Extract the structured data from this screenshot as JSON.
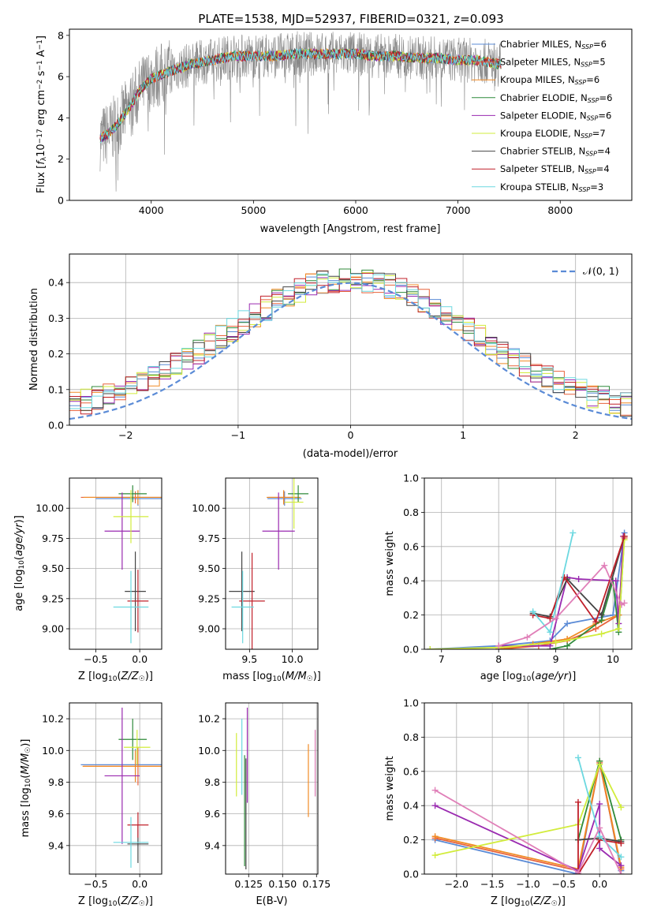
{
  "figure": {
    "title": "PLATE=1538, MJD=52937, FIBERID=0321, z=0.093"
  },
  "models": [
    {
      "name": "Chabrier MILES",
      "nssp": "6",
      "color": "#5b8bd6"
    },
    {
      "name": "Salpeter MILES",
      "nssp": "5",
      "color": "#e8623a"
    },
    {
      "name": "Kroupa MILES",
      "nssp": "6",
      "color": "#f08a24"
    },
    {
      "name": "Chabrier ELODIE",
      "nssp": "6",
      "color": "#2f8a3a"
    },
    {
      "name": "Salpeter ELODIE",
      "nssp": "6",
      "color": "#9a2ab0"
    },
    {
      "name": "Kroupa ELODIE",
      "nssp": "7",
      "color": "#d2ec3c"
    },
    {
      "name": "Chabrier STELIB",
      "nssp": "4",
      "color": "#444444"
    },
    {
      "name": "Salpeter STELIB",
      "nssp": "4",
      "color": "#c0202a"
    },
    {
      "name": "Kroupa STELIB",
      "nssp": "3",
      "color": "#6cd8e0"
    }
  ],
  "chart_data": [
    {
      "id": "spectrum",
      "type": "line",
      "xlabel": "wavelength [Angstrom, rest frame]",
      "ylabel": "Flux [f_λ 10^-17 erg cm^-2 s^-1 A^-1]",
      "xlim": [
        3200,
        8700
      ],
      "ylim": [
        0,
        8.3
      ],
      "xticks": [
        4000,
        5000,
        6000,
        7000,
        8000
      ],
      "yticks": [
        0,
        2,
        4,
        6,
        8
      ],
      "data_color": "#888888",
      "continuum_x": [
        3500,
        3600,
        3700,
        3800,
        3900,
        4000,
        4200,
        4400,
        4600,
        4800,
        5000,
        5200,
        5400,
        5600,
        5800,
        6000,
        6200,
        6400,
        6600,
        6800,
        7000,
        7200,
        7400
      ],
      "continuum_y": [
        3.0,
        3.3,
        3.9,
        4.6,
        5.4,
        5.9,
        6.3,
        6.6,
        6.8,
        7.0,
        7.0,
        7.0,
        7.1,
        7.1,
        7.1,
        7.1,
        7.0,
        7.0,
        6.9,
        6.9,
        6.8,
        6.8,
        6.6
      ],
      "legend_position": "right",
      "grid": false
    },
    {
      "id": "residuals",
      "type": "histogram",
      "xlabel": "(data-model)/error",
      "ylabel": "Normed distribution",
      "xlim": [
        -2.5,
        2.5
      ],
      "ylim": [
        0,
        0.48
      ],
      "xticks": [
        -2,
        -1,
        0,
        1,
        2
      ],
      "yticks": [
        0.0,
        0.1,
        0.2,
        0.3,
        0.4
      ],
      "bin_width": 0.1,
      "reference": {
        "label": "𝒩(0, 1)",
        "color": "#5b8bd6",
        "style": "dashed"
      },
      "grid": true
    },
    {
      "id": "age_vs_Z",
      "type": "scatter",
      "xlabel": "Z [log10(Z/Z☉)]",
      "ylabel": "age  [log10(age/yr)]",
      "xlim": [
        -0.8,
        0.25
      ],
      "ylim": [
        8.83,
        10.25
      ],
      "xticks": [
        -0.5,
        0.0
      ],
      "yticks": [
        9.0,
        9.25,
        9.5,
        9.75,
        10.0
      ],
      "points": [
        {
          "x": -0.02,
          "y": 10.08,
          "xerr": 0.48,
          "yerr": 0.06
        },
        {
          "x": -0.05,
          "y": 10.09,
          "xerr": 0.62,
          "yerr": 0.05
        },
        {
          "x": -0.02,
          "y": 10.09,
          "xerr": 0.62,
          "yerr": 0.06
        },
        {
          "x": -0.08,
          "y": 10.12,
          "xerr": 0.16,
          "yerr": 0.07
        },
        {
          "x": -0.2,
          "y": 9.81,
          "xerr": 0.2,
          "yerr": 0.32
        },
        {
          "x": -0.1,
          "y": 9.93,
          "xerr": 0.2,
          "yerr": 0.22
        },
        {
          "x": -0.05,
          "y": 9.31,
          "xerr": 0.12,
          "yerr": 0.33
        },
        {
          "x": -0.02,
          "y": 9.23,
          "xerr": 0.12,
          "yerr": 0.26
        },
        {
          "x": -0.1,
          "y": 9.18,
          "xerr": 0.2,
          "yerr": 0.3
        }
      ],
      "grid": true
    },
    {
      "id": "age_vs_mass",
      "type": "scatter",
      "xlabel": "mass [log10(M/M☉)]",
      "ylabel": "",
      "xlim": [
        9.22,
        10.3
      ],
      "ylim": [
        8.83,
        10.25
      ],
      "xticks": [
        9.5,
        10.0
      ],
      "yticks": [
        9.0,
        9.25,
        9.5,
        9.75,
        10.0
      ],
      "points": [
        {
          "x": 9.91,
          "y": 10.08,
          "xerr": 0.2,
          "yerr": 0.06
        },
        {
          "x": 9.9,
          "y": 10.09,
          "xerr": 0.18,
          "yerr": 0.05
        },
        {
          "x": 9.9,
          "y": 10.09,
          "xerr": 0.2,
          "yerr": 0.06
        },
        {
          "x": 10.07,
          "y": 10.12,
          "xerr": 0.12,
          "yerr": 0.07
        },
        {
          "x": 9.84,
          "y": 9.81,
          "xerr": 0.19,
          "yerr": 0.32
        },
        {
          "x": 10.02,
          "y": 10.05,
          "xerr": 0.11,
          "yerr": 0.22
        },
        {
          "x": 9.41,
          "y": 9.31,
          "xerr": 0.15,
          "yerr": 0.33
        },
        {
          "x": 9.53,
          "y": 9.23,
          "xerr": 0.15,
          "yerr": 0.4
        },
        {
          "x": 9.42,
          "y": 9.18,
          "xerr": 0.13,
          "yerr": 0.3
        }
      ],
      "grid": true
    },
    {
      "id": "mass_weight_vs_age",
      "type": "line",
      "xlabel": "age  [log10(age/yr)]",
      "ylabel": "mass weight",
      "xlim": [
        6.7,
        10.33
      ],
      "ylim": [
        0,
        1.0
      ],
      "xticks": [
        7,
        8,
        9,
        10
      ],
      "yticks": [
        0.0,
        0.2,
        0.4,
        0.6,
        0.8,
        1.0
      ],
      "series": [
        {
          "x": [
            6.8,
            8.0,
            8.9,
            9.2,
            10.0,
            10.2
          ],
          "y": [
            0.0,
            0.02,
            0.05,
            0.15,
            0.2,
            0.68
          ]
        },
        {
          "x": [
            8.0,
            8.7,
            9.2,
            9.7,
            10.1,
            10.2
          ],
          "y": [
            0.0,
            0.02,
            0.05,
            0.12,
            0.2,
            0.65
          ]
        },
        {
          "x": [
            8.0,
            8.6,
            9.2,
            9.7,
            10.1,
            10.2
          ],
          "y": [
            0.0,
            0.03,
            0.06,
            0.15,
            0.2,
            0.66
          ]
        },
        {
          "x": [
            8.9,
            9.2,
            9.8,
            10.0,
            10.1,
            10.2
          ],
          "y": [
            0.0,
            0.02,
            0.17,
            0.4,
            0.1,
            0.66
          ]
        },
        {
          "x": [
            8.0,
            8.9,
            9.2,
            9.4,
            10.05,
            10.1,
            10.18
          ],
          "y": [
            0.02,
            0.02,
            0.42,
            0.41,
            0.4,
            0.15,
            0.66
          ]
        },
        {
          "x": [
            6.8,
            8.0,
            9.0,
            9.8,
            10.1,
            10.2
          ],
          "y": [
            0.0,
            0.01,
            0.04,
            0.09,
            0.12,
            0.64
          ]
        },
        {
          "x": [
            8.6,
            8.9,
            9.2,
            9.8,
            10.2
          ],
          "y": [
            0.21,
            0.19,
            0.41,
            0.2,
            0.66
          ]
        },
        {
          "x": [
            8.6,
            8.9,
            9.15,
            9.7,
            10.2
          ],
          "y": [
            0.2,
            0.18,
            0.42,
            0.16,
            0.66
          ]
        },
        {
          "x": [
            8.6,
            8.9,
            9.3
          ],
          "y": [
            0.22,
            0.1,
            0.68
          ]
        },
        {
          "x": [
            8.0,
            8.5,
            9.0,
            9.85,
            10.15,
            10.2
          ],
          "y": [
            0.02,
            0.07,
            0.18,
            0.49,
            0.26,
            0.27
          ]
        }
      ],
      "grid": true
    },
    {
      "id": "mass_vs_Z",
      "type": "scatter",
      "xlabel": "Z [log10(Z/Z☉)]",
      "ylabel": "mass [log10(M/M☉)]",
      "xlim": [
        -0.8,
        0.25
      ],
      "ylim": [
        9.22,
        10.3
      ],
      "xticks": [
        -0.5,
        0.0
      ],
      "yticks": [
        9.4,
        9.6,
        9.8,
        10.0,
        10.2
      ],
      "points": [
        {
          "x": -0.05,
          "y": 9.91,
          "xerr": 0.62,
          "yerr": 0.1
        },
        {
          "x": -0.02,
          "y": 9.9,
          "xerr": 0.62,
          "yerr": 0.12
        },
        {
          "x": -0.05,
          "y": 9.9,
          "xerr": 0.6,
          "yerr": 0.1
        },
        {
          "x": -0.08,
          "y": 10.07,
          "xerr": 0.16,
          "yerr": 0.13
        },
        {
          "x": -0.2,
          "y": 9.84,
          "xerr": 0.2,
          "yerr": 0.43
        },
        {
          "x": -0.03,
          "y": 10.02,
          "xerr": 0.15,
          "yerr": 0.11
        },
        {
          "x": -0.02,
          "y": 9.41,
          "xerr": 0.12,
          "yerr": 0.12
        },
        {
          "x": -0.02,
          "y": 9.53,
          "xerr": 0.12,
          "yerr": 0.08
        },
        {
          "x": -0.1,
          "y": 9.42,
          "xerr": 0.2,
          "yerr": 0.16
        }
      ],
      "grid": true
    },
    {
      "id": "mass_vs_ebv",
      "type": "scatter",
      "xlabel": "E(B-V)",
      "ylabel": "",
      "xlim": [
        0.108,
        0.176
      ],
      "ylim": [
        9.22,
        10.3
      ],
      "xticks": [
        0.125,
        0.15,
        0.175
      ],
      "yticks": [
        9.4,
        9.6,
        9.8,
        10.0,
        10.2
      ],
      "points": [
        {
          "x": 0.116,
          "y": 9.91,
          "xerr": 0,
          "yerr": 0.2
        },
        {
          "x": 0.12,
          "y": 9.96,
          "xerr": 0,
          "yerr": 0.24
        },
        {
          "x": 0.124,
          "y": 9.97,
          "xerr": 0,
          "yerr": 0.3
        },
        {
          "x": 0.123,
          "y": 9.6,
          "xerr": 0,
          "yerr": 0.35
        },
        {
          "x": 0.122,
          "y": 9.62,
          "xerr": 0,
          "yerr": 0.35
        },
        {
          "x": 0.169,
          "y": 9.81,
          "xerr": 0,
          "yerr": 0.23
        },
        {
          "x": 0.174,
          "y": 9.92,
          "xerr": 0,
          "yerr": 0.21
        }
      ],
      "grid": true
    },
    {
      "id": "mass_weight_vs_Z",
      "type": "line",
      "xlabel": "Z [log10(Z/Z☉)]",
      "ylabel": "mass weight",
      "xlim": [
        -2.45,
        0.45
      ],
      "ylim": [
        0,
        1.0
      ],
      "xticks": [
        -2.0,
        -1.5,
        -1.0,
        -0.5,
        0.0
      ],
      "yticks": [
        0.0,
        0.2,
        0.4,
        0.6,
        0.8,
        1.0
      ],
      "series": [
        {
          "x": [
            -2.3,
            -0.3,
            0.0,
            0.3
          ],
          "y": [
            0.2,
            0.0,
            0.66,
            0.02
          ]
        },
        {
          "x": [
            -2.3,
            -0.3,
            0.0,
            0.3
          ],
          "y": [
            0.21,
            0.02,
            0.65,
            0.03
          ]
        },
        {
          "x": [
            -2.3,
            -0.3,
            0.0,
            0.3
          ],
          "y": [
            0.22,
            0.03,
            0.66,
            0.04
          ]
        },
        {
          "x": [
            -0.3,
            0.0,
            0.3
          ],
          "y": [
            0.2,
            0.66,
            0.2
          ]
        },
        {
          "x": [
            -2.3,
            -0.3,
            0.0,
            0.0,
            0.3
          ],
          "y": [
            0.4,
            0.02,
            0.41,
            0.15,
            0.05
          ]
        },
        {
          "x": [
            -2.3,
            -0.3,
            0.0,
            0.3
          ],
          "y": [
            0.11,
            0.29,
            0.64,
            0.39
          ]
        },
        {
          "x": [
            -0.3,
            0.0,
            0.3
          ],
          "y": [
            0.2,
            0.21,
            0.19
          ]
        },
        {
          "x": [
            -0.3,
            -0.3,
            0.0,
            0.3
          ],
          "y": [
            0.42,
            0.0,
            0.2,
            0.18
          ]
        },
        {
          "x": [
            -0.3,
            0.0,
            0.3
          ],
          "y": [
            0.68,
            0.22,
            0.1
          ]
        },
        {
          "x": [
            -2.3,
            -0.3,
            0.0,
            0.3
          ],
          "y": [
            0.49,
            0.01,
            0.27,
            0.0
          ]
        }
      ],
      "grid": true
    }
  ]
}
